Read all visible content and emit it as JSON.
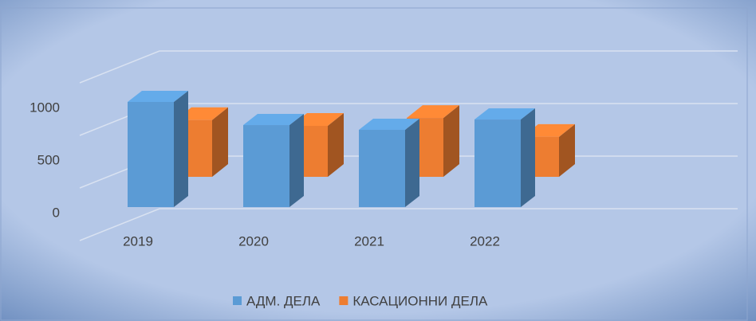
{
  "chart_data": {
    "type": "bar3d",
    "categories": [
      "2019",
      "2020",
      "2021",
      "2022"
    ],
    "series": [
      {
        "name": "АДМ. ДЕЛА",
        "color": "#5b9bd5",
        "values": [
          1000,
          780,
          735,
          833
        ]
      },
      {
        "name": "КАСАЦИОННИ ДЕЛА",
        "color": "#ed7d31",
        "values": [
          540,
          485,
          560,
          380
        ]
      }
    ],
    "ylim": [
      0,
      1500
    ],
    "yticks": [
      0,
      500,
      1000
    ],
    "grid": true,
    "legend": "bottom"
  }
}
